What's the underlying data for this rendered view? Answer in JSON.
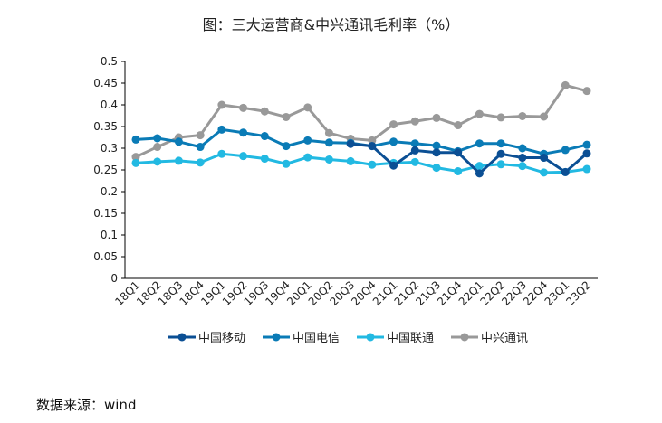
{
  "chart_data": {
    "type": "line",
    "title": "图：三大运营商&中兴通讯毛利率（%）",
    "categories": [
      "18Q1",
      "18Q2",
      "18Q3",
      "18Q4",
      "19Q1",
      "19Q2",
      "19Q3",
      "19Q4",
      "20Q1",
      "20Q2",
      "20Q3",
      "20Q4",
      "21Q1",
      "21Q2",
      "21Q3",
      "21Q4",
      "22Q1",
      "22Q2",
      "22Q3",
      "22Q4",
      "23Q1",
      "23Q2"
    ],
    "ylim": [
      0,
      0.5
    ],
    "yticks": [
      "0",
      "0.05",
      "0.1",
      "0.15",
      "0.2",
      "0.25",
      "0.3",
      "0.35",
      "0.4",
      "0.45",
      "0.5"
    ],
    "grid": false,
    "legend": "bottom",
    "series": [
      {
        "name": "中国移动",
        "color": "#0b4f94",
        "values": [
          null,
          null,
          null,
          null,
          null,
          null,
          null,
          null,
          null,
          null,
          0.31,
          0.305,
          0.26,
          0.295,
          0.29,
          0.29,
          0.242,
          0.287,
          0.278,
          0.278,
          0.245,
          0.288
        ]
      },
      {
        "name": "中国电信",
        "color": "#0a7bb6",
        "values": [
          0.32,
          0.323,
          0.315,
          0.303,
          0.343,
          0.336,
          0.328,
          0.305,
          0.318,
          0.313,
          0.312,
          0.305,
          0.315,
          0.311,
          0.306,
          0.293,
          0.311,
          0.311,
          0.3,
          0.287,
          0.296,
          0.308
        ]
      },
      {
        "name": "中国联通",
        "color": "#22b9e2",
        "values": [
          0.266,
          0.269,
          0.271,
          0.267,
          0.287,
          0.282,
          0.276,
          0.264,
          0.279,
          0.274,
          0.27,
          0.262,
          0.266,
          0.268,
          0.255,
          0.247,
          0.259,
          0.263,
          0.259,
          0.244,
          0.245,
          0.252
        ]
      },
      {
        "name": "中兴通讯",
        "color": "#999999",
        "values": [
          0.28,
          0.303,
          0.325,
          0.33,
          0.4,
          0.393,
          0.385,
          0.372,
          0.394,
          0.335,
          0.322,
          0.318,
          0.355,
          0.362,
          0.37,
          0.353,
          0.379,
          0.371,
          0.374,
          0.373,
          0.445,
          0.432
        ]
      }
    ]
  },
  "source": "数据来源：wind"
}
